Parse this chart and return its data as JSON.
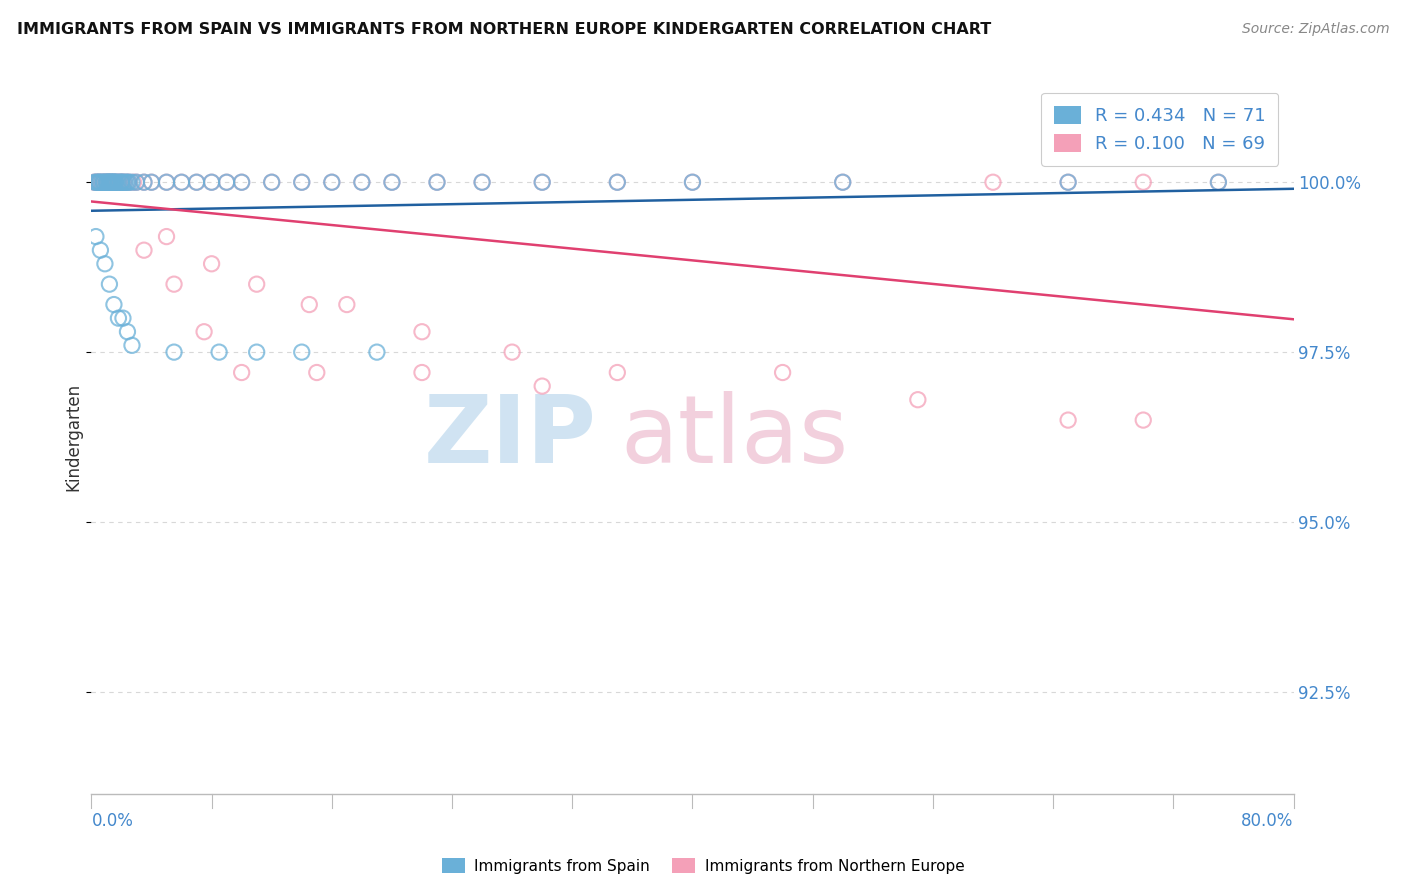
{
  "title": "IMMIGRANTS FROM SPAIN VS IMMIGRANTS FROM NORTHERN EUROPE KINDERGARTEN CORRELATION CHART",
  "source_text": "Source: ZipAtlas.com",
  "ylabel": "Kindergarten",
  "xmin": 0.0,
  "xmax": 80.0,
  "ymin": 91.0,
  "ymax": 101.5,
  "yticks": [
    92.5,
    95.0,
    97.5,
    100.0
  ],
  "ytick_labels": [
    "92.5%",
    "95.0%",
    "97.5%",
    "100.0%"
  ],
  "legend_r_spain": "R = 0.434",
  "legend_n_spain": "N = 71",
  "legend_r_north": "R = 0.100",
  "legend_n_north": "N = 69",
  "spain_color": "#6ab0d8",
  "north_color": "#f4a0b8",
  "spain_line_color": "#2060a0",
  "north_line_color": "#e04070",
  "spain_x": [
    0.2,
    0.3,
    0.4,
    0.5,
    0.5,
    0.6,
    0.7,
    0.8,
    0.8,
    0.9,
    1.0,
    1.0,
    1.1,
    1.1,
    1.2,
    1.2,
    1.3,
    1.3,
    1.4,
    1.4,
    1.5,
    1.5,
    1.6,
    1.6,
    1.7,
    1.8,
    1.9,
    2.0,
    2.0,
    2.1,
    2.2,
    2.3,
    2.4,
    2.5,
    2.7,
    3.0,
    3.5,
    4.0,
    5.0,
    6.0,
    7.0,
    8.0,
    9.0,
    10.0,
    12.0,
    14.0,
    16.0,
    18.0,
    20.0,
    23.0,
    26.0,
    30.0,
    35.0,
    40.0,
    50.0,
    65.0,
    0.3,
    0.6,
    0.9,
    1.2,
    1.5,
    1.8,
    2.1,
    2.4,
    2.7,
    5.5,
    8.5,
    11.0,
    14.0,
    19.0,
    75.0
  ],
  "spain_y": [
    100.0,
    100.0,
    100.0,
    100.0,
    100.0,
    100.0,
    100.0,
    100.0,
    100.0,
    100.0,
    100.0,
    100.0,
    100.0,
    100.0,
    100.0,
    100.0,
    100.0,
    100.0,
    100.0,
    100.0,
    100.0,
    100.0,
    100.0,
    100.0,
    100.0,
    100.0,
    100.0,
    100.0,
    100.0,
    100.0,
    100.0,
    100.0,
    100.0,
    100.0,
    100.0,
    100.0,
    100.0,
    100.0,
    100.0,
    100.0,
    100.0,
    100.0,
    100.0,
    100.0,
    100.0,
    100.0,
    100.0,
    100.0,
    100.0,
    100.0,
    100.0,
    100.0,
    100.0,
    100.0,
    100.0,
    100.0,
    99.2,
    99.0,
    98.8,
    98.5,
    98.2,
    98.0,
    98.0,
    97.8,
    97.6,
    97.5,
    97.5,
    97.5,
    97.5,
    97.5,
    100.0
  ],
  "north_x": [
    0.2,
    0.3,
    0.4,
    0.5,
    0.6,
    0.7,
    0.8,
    0.9,
    1.0,
    1.0,
    1.1,
    1.2,
    1.2,
    1.3,
    1.4,
    1.5,
    1.6,
    1.7,
    1.8,
    1.9,
    2.0,
    2.1,
    2.2,
    2.4,
    2.5,
    2.8,
    3.0,
    3.5,
    4.0,
    5.0,
    6.0,
    7.0,
    8.0,
    9.0,
    10.0,
    12.0,
    14.0,
    16.0,
    18.0,
    20.0,
    23.0,
    26.0,
    30.0,
    35.0,
    40.0,
    50.0,
    60.0,
    65.0,
    70.0,
    5.0,
    8.0,
    11.0,
    14.5,
    17.0,
    22.0,
    28.0,
    35.0,
    46.0,
    55.0,
    65.0,
    70.0,
    75.0,
    3.5,
    5.5,
    7.5,
    10.0,
    15.0,
    22.0,
    30.0
  ],
  "north_y": [
    100.0,
    100.0,
    100.0,
    100.0,
    100.0,
    100.0,
    100.0,
    100.0,
    100.0,
    100.0,
    100.0,
    100.0,
    100.0,
    100.0,
    100.0,
    100.0,
    100.0,
    100.0,
    100.0,
    100.0,
    100.0,
    100.0,
    100.0,
    100.0,
    100.0,
    100.0,
    100.0,
    100.0,
    100.0,
    100.0,
    100.0,
    100.0,
    100.0,
    100.0,
    100.0,
    100.0,
    100.0,
    100.0,
    100.0,
    100.0,
    100.0,
    100.0,
    100.0,
    100.0,
    100.0,
    100.0,
    100.0,
    100.0,
    100.0,
    99.2,
    98.8,
    98.5,
    98.2,
    98.2,
    97.8,
    97.5,
    97.2,
    97.2,
    96.8,
    96.5,
    96.5,
    100.0,
    99.0,
    98.5,
    97.8,
    97.2,
    97.2,
    97.2,
    97.0
  ],
  "background_color": "#ffffff",
  "grid_color": "#d8d8d8",
  "watermark_color": "#c8dff0",
  "watermark_color2": "#f0c8d8"
}
